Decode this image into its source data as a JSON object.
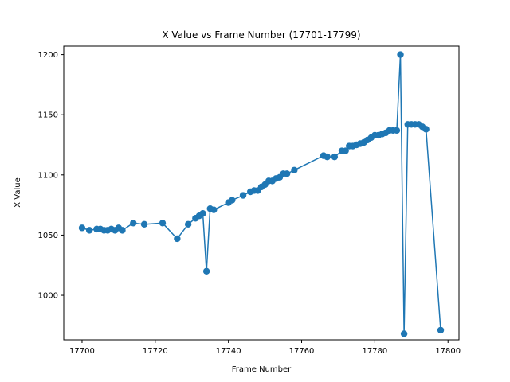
{
  "chart_data": {
    "type": "line",
    "title": "X Value vs Frame Number (17701-17799)",
    "xlabel": "Frame Number",
    "ylabel": "X Value",
    "xlim": [
      17695,
      17803
    ],
    "ylim": [
      963,
      1207
    ],
    "xticks": [
      17700,
      17720,
      17740,
      17760,
      17780,
      17800
    ],
    "yticks": [
      1000,
      1050,
      1100,
      1150,
      1200
    ],
    "grid": false,
    "color": "#1f77b4",
    "series": [
      {
        "x": [
          17700,
          17702,
          17704,
          17705,
          17706,
          17707,
          17708,
          17709,
          17710,
          17711,
          17714,
          17717,
          17722,
          17726,
          17729,
          17731,
          17732,
          17733,
          17734,
          17735,
          17736,
          17740,
          17741,
          17744,
          17746,
          17747,
          17748,
          17749,
          17750,
          17751,
          17752,
          17753,
          17754,
          17755,
          17756,
          17758,
          17766,
          17767,
          17769,
          17771,
          17772,
          17773,
          17774,
          17775,
          17776,
          17777,
          17778,
          17779,
          17780,
          17781,
          17782,
          17783,
          17784,
          17785,
          17786,
          17787,
          17788,
          17789,
          17790,
          17791,
          17792,
          17793,
          17794,
          17798
        ],
        "values": [
          1056,
          1054,
          1055,
          1055,
          1054,
          1054,
          1055,
          1054,
          1056,
          1054,
          1060,
          1059,
          1060,
          1047,
          1059,
          1064,
          1066,
          1068,
          1020,
          1072,
          1071,
          1077,
          1079,
          1083,
          1086,
          1087,
          1087,
          1090,
          1092,
          1095,
          1095,
          1097,
          1098,
          1101,
          1101,
          1104,
          1116,
          1115,
          1115,
          1120,
          1120,
          1124,
          1124,
          1125,
          1126,
          1127,
          1129,
          1131,
          1133,
          1133,
          1134,
          1135,
          1137,
          1137,
          1137,
          1200,
          968,
          1142,
          1142,
          1142,
          1142,
          1140,
          1138,
          971
        ]
      }
    ]
  }
}
